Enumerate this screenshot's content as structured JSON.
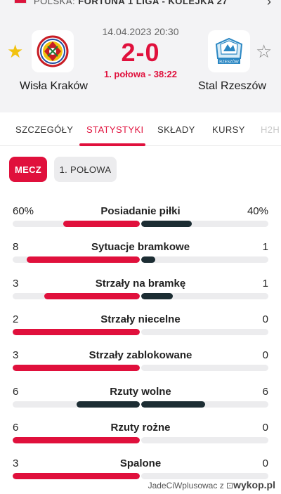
{
  "header": {
    "country": "POLSKA",
    "league": "FORTUNA 1 LIGA - KOLEJKA 27"
  },
  "match": {
    "datetime": "14.04.2023 20:30",
    "score": "2-0",
    "status": "1. połowa - 38:22",
    "home_team": "Wisła Kraków",
    "away_team": "Stal Rzeszów",
    "away_logo_text": "RZESZÓW"
  },
  "tabs": [
    {
      "label": "SZCZEGÓŁY"
    },
    {
      "label": "STATYSTYKI"
    },
    {
      "label": "SKŁADY"
    },
    {
      "label": "KURSY"
    },
    {
      "label": "H2H"
    }
  ],
  "period_filters": {
    "match": "MECZ",
    "first_half": "1. POŁOWA"
  },
  "colors": {
    "home": "#e0103c",
    "away": "#1c2d33",
    "neutral_dark": "#1c2d33"
  },
  "stats": [
    {
      "name": "Posiadanie piłki",
      "home": "60%",
      "away": "40%",
      "home_val": 60,
      "away_val": 40,
      "home_color": "#e0103c",
      "away_color": "#1c2d33"
    },
    {
      "name": "Sytuacje bramkowe",
      "home": "8",
      "away": "1",
      "home_val": 8,
      "away_val": 1,
      "home_color": "#e0103c",
      "away_color": "#1c2d33"
    },
    {
      "name": "Strzały na bramkę",
      "home": "3",
      "away": "1",
      "home_val": 3,
      "away_val": 1,
      "home_color": "#e0103c",
      "away_color": "#1c2d33"
    },
    {
      "name": "Strzały niecelne",
      "home": "2",
      "away": "0",
      "home_val": 2,
      "away_val": 0,
      "home_color": "#e0103c",
      "away_color": "#1c2d33"
    },
    {
      "name": "Strzały zablokowane",
      "home": "3",
      "away": "0",
      "home_val": 3,
      "away_val": 0,
      "home_color": "#e0103c",
      "away_color": "#1c2d33"
    },
    {
      "name": "Rzuty wolne",
      "home": "6",
      "away": "6",
      "home_val": 6,
      "away_val": 6,
      "home_color": "#1c2d33",
      "away_color": "#1c2d33"
    },
    {
      "name": "Rzuty rożne",
      "home": "6",
      "away": "0",
      "home_val": 6,
      "away_val": 0,
      "home_color": "#e0103c",
      "away_color": "#1c2d33"
    },
    {
      "name": "Spalone",
      "home": "3",
      "away": "0",
      "home_val": 3,
      "away_val": 0,
      "home_color": "#e0103c",
      "away_color": "#1c2d33"
    }
  ],
  "watermark": {
    "user": "JadeCiWplusowac",
    "suffix": "z",
    "site": "wykop.pl"
  }
}
